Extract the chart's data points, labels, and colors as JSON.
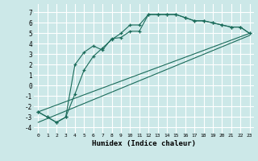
{
  "xlabel": "Humidex (Indice chaleur)",
  "bg_color": "#cce8e8",
  "grid_color": "#ffffff",
  "line_color": "#1a6b5a",
  "xlim": [
    -0.5,
    23.5
  ],
  "ylim": [
    -4.5,
    7.8
  ],
  "xticks": [
    0,
    1,
    2,
    3,
    4,
    5,
    6,
    7,
    8,
    9,
    10,
    11,
    12,
    13,
    14,
    15,
    16,
    17,
    18,
    19,
    20,
    21,
    22,
    23
  ],
  "yticks": [
    -4,
    -3,
    -2,
    -1,
    0,
    1,
    2,
    3,
    4,
    5,
    6,
    7
  ],
  "series1_x": [
    0,
    1,
    2,
    3,
    4,
    5,
    6,
    7,
    8,
    9,
    10,
    11,
    12,
    13,
    14,
    15,
    16,
    17,
    18,
    19,
    20,
    21,
    22,
    23
  ],
  "series1_y": [
    -2.5,
    -3.0,
    -3.5,
    -3.0,
    2.0,
    3.2,
    3.8,
    3.4,
    4.5,
    4.6,
    5.2,
    5.2,
    6.8,
    6.8,
    6.8,
    6.8,
    6.5,
    6.2,
    6.2,
    6.0,
    5.8,
    5.6,
    5.6,
    5.0
  ],
  "series2_x": [
    0,
    1,
    2,
    3,
    4,
    5,
    6,
    7,
    8,
    9,
    10,
    11,
    12,
    13,
    14,
    15,
    16,
    17,
    18,
    19,
    20,
    21,
    22,
    23
  ],
  "series2_y": [
    -2.5,
    -3.0,
    -3.5,
    -3.0,
    -0.8,
    1.5,
    2.8,
    3.6,
    4.4,
    5.0,
    5.8,
    5.8,
    6.8,
    6.8,
    6.8,
    6.8,
    6.5,
    6.2,
    6.2,
    6.0,
    5.8,
    5.6,
    5.6,
    5.0
  ],
  "series3_x": [
    0,
    23
  ],
  "series3_y": [
    -2.5,
    5.0
  ],
  "series4_x": [
    0,
    23
  ],
  "series4_y": [
    -3.5,
    4.8
  ]
}
